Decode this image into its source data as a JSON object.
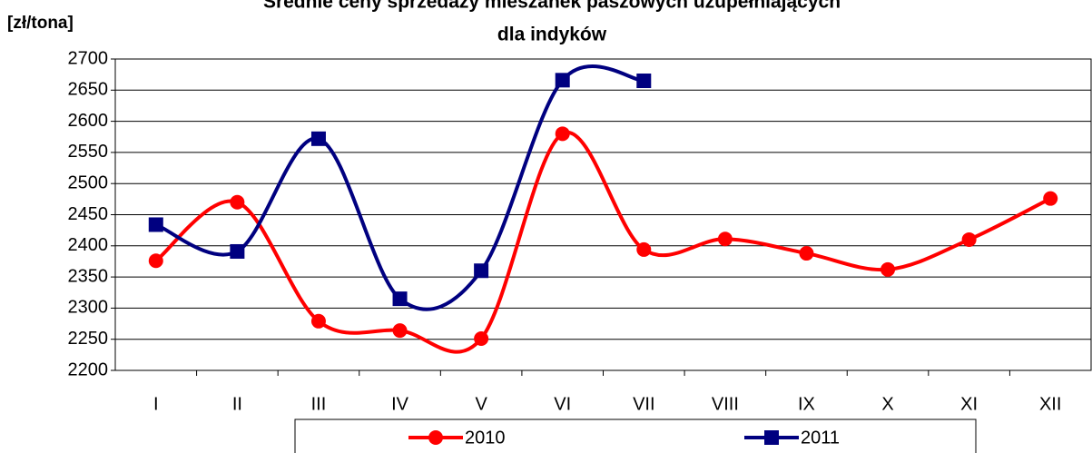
{
  "chart_data": {
    "type": "line",
    "title": [
      "Średnie ceny sprzedaży mieszanek paszowych uzupełniających",
      "dla indyków"
    ],
    "y_label": "[zł/tona]",
    "categories": [
      "I",
      "II",
      "III",
      "IV",
      "V",
      "VI",
      "VII",
      "VIII",
      "IX",
      "X",
      "XI",
      "XII"
    ],
    "series": [
      {
        "name": "2010",
        "color": "#ff0000",
        "marker": "circle",
        "values": [
          2376,
          2470,
          2279,
          2264,
          2251,
          2580,
          2394,
          2411,
          2388,
          2362,
          2410,
          2476
        ]
      },
      {
        "name": "2011",
        "color": "#000080",
        "marker": "square",
        "values": [
          2434,
          2391,
          2572,
          2315,
          2360,
          2666,
          2665,
          null,
          null,
          null,
          null,
          null
        ]
      }
    ],
    "ylim": [
      2200,
      2700
    ],
    "yticks": [
      2200,
      2250,
      2300,
      2350,
      2400,
      2450,
      2500,
      2550,
      2600,
      2650,
      2700
    ],
    "grid": true,
    "smooth": true,
    "legend": "bottom"
  }
}
